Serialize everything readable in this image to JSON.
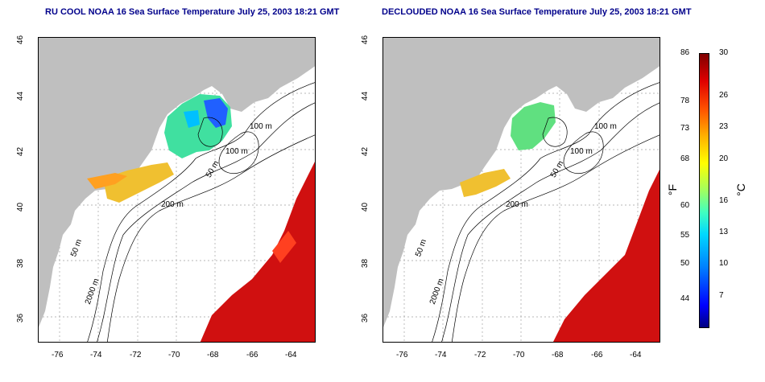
{
  "titles": {
    "left": "RU COOL NOAA 16 Sea Surface Temperature July 25, 2003 18:21 GMT",
    "right": "DECLOUDED NOAA 16 Sea Surface Temperature July 25, 2003 18:21 GMT"
  },
  "axes": {
    "x_ticks": [
      "-76",
      "-74",
      "-72",
      "-70",
      "-68",
      "-66",
      "-64"
    ],
    "y_ticks": [
      "46",
      "44",
      "42",
      "40",
      "38",
      "36"
    ]
  },
  "contour_labels": {
    "left": [
      "100 m",
      "100 m",
      "50 m",
      "200 m",
      "50 m",
      "2000 m"
    ],
    "right": [
      "100 m",
      "100 m",
      "50 m",
      "200 m",
      "50 m",
      "2000 m"
    ]
  },
  "colorbar": {
    "fahrenheit_ticks": [
      "86",
      "78",
      "73",
      "68",
      "60",
      "55",
      "50",
      "44"
    ],
    "celsius_ticks": [
      "30",
      "26",
      "23",
      "20",
      "16",
      "13",
      "10",
      "7"
    ],
    "fahrenheit_unit": "°F",
    "celsius_unit": "°C"
  },
  "colors": {
    "land": "#bfbfbf",
    "title": "#00008b",
    "grid": "#a0a0a0"
  }
}
